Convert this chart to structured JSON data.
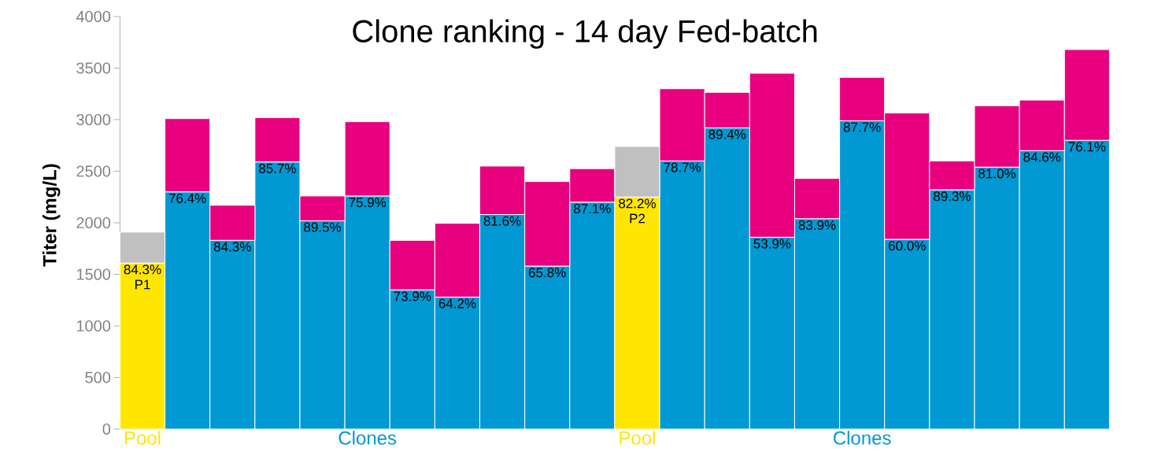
{
  "chart_data": {
    "type": "bar",
    "stacked": true,
    "title": "Clone ranking - 14 day Fed-batch",
    "ylabel": "Titer (mg/L)",
    "categories": [
      "Pool",
      null,
      null,
      null,
      null,
      "Clones",
      null,
      null,
      null,
      null,
      null,
      "Pool",
      null,
      null,
      null,
      null,
      "Clones",
      null,
      null,
      null,
      null,
      null
    ],
    "series": [
      {
        "colors": [
          "#ffe600",
          "#0099d3",
          "#0099d3",
          "#0099d3",
          "#0099d3",
          "#0099d3",
          "#0099d3",
          "#0099d3",
          "#0099d3",
          "#0099d3",
          "#0099d3",
          "#ffe600",
          "#0099d3",
          "#0099d3",
          "#0099d3",
          "#0099d3",
          "#0099d3",
          "#0099d3",
          "#0099d3",
          "#0099d3",
          "#0099d3",
          "#0099d3"
        ],
        "values": [
          1610,
          2300,
          1830,
          2590,
          2020,
          2260,
          1350,
          1280,
          2080,
          1580,
          2200,
          2250,
          2600,
          2920,
          1860,
          2040,
          2990,
          1840,
          2320,
          2540,
          2700,
          2800
        ]
      },
      {
        "colors": [
          "#c0c0c0",
          "#e8007f",
          "#e8007f",
          "#e8007f",
          "#e8007f",
          "#e8007f",
          "#e8007f",
          "#e8007f",
          "#e8007f",
          "#e8007f",
          "#e8007f",
          "#c0c0c0",
          "#e8007f",
          "#e8007f",
          "#e8007f",
          "#e8007f",
          "#e8007f",
          "#e8007f",
          "#e8007f",
          "#e8007f",
          "#e8007f",
          "#e8007f"
        ],
        "values": [
          300,
          710,
          340,
          430,
          240,
          720,
          480,
          715,
          470,
          820,
          325,
          490,
          700,
          345,
          1590,
          390,
          420,
          1225,
          280,
          595,
          490,
          880
        ]
      }
    ],
    "annotations": [
      "84.3% P1",
      "76.4%",
      "84.3%",
      "85.7%",
      "89.5%",
      "75.9%",
      "73.9%",
      "64.2%",
      "81.6%",
      "65.8%",
      "87.1%",
      "82.2% P2",
      "78.7%",
      "89.4%",
      "53.9%",
      "83.9%",
      "87.7%",
      "60.0%",
      "89.3%",
      "81.0%",
      "84.6%",
      "76.1%"
    ],
    "ylim": [
      0,
      4000
    ],
    "yticks": [
      0,
      500,
      1000,
      1500,
      2000,
      2500,
      3000,
      3500,
      4000
    ],
    "grid": false
  }
}
